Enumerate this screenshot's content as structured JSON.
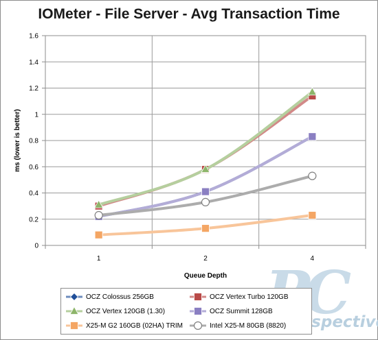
{
  "chart_data": {
    "type": "line",
    "title": "IOMeter - File Server - Avg Transaction Time",
    "xlabel": "Queue Depth",
    "ylabel": "ms (lower is better)",
    "categories": [
      "1",
      "2",
      "4"
    ],
    "ylim": [
      0,
      1.6
    ],
    "yticks": [
      "0",
      "0.2",
      "0.4",
      "0.6",
      "0.8",
      "1",
      "1.2",
      "1.4",
      "1.6"
    ],
    "grid": true,
    "legend_position": "bottom",
    "series": [
      {
        "name": "OCZ Colossus 256GB",
        "values": [
          0.22,
          0.41,
          0.83
        ],
        "color": "#1f4e99",
        "marker": "diamond"
      },
      {
        "name": "OCZ Vertex Turbo 120GB",
        "values": [
          0.3,
          0.58,
          1.14
        ],
        "color": "#b94a48",
        "marker": "square"
      },
      {
        "name": "OCZ Vertex 120GB (1.30)",
        "values": [
          0.31,
          0.58,
          1.17
        ],
        "color": "#8db56a",
        "marker": "triangle"
      },
      {
        "name": "OCZ Summit 128GB",
        "values": [
          0.22,
          0.41,
          0.83
        ],
        "color": "#8a7fc2",
        "marker": "square"
      },
      {
        "name": "X25-M G2 160GB (02HA) TRIM",
        "values": [
          0.08,
          0.13,
          0.23
        ],
        "color": "#f4a664",
        "marker": "square"
      },
      {
        "name": "Intel X25-M 80GB (8820)",
        "values": [
          0.23,
          0.33,
          0.53
        ],
        "color": "#7f7f7f",
        "marker": "circle"
      }
    ]
  },
  "watermark": {
    "big": "PC",
    "small": "Perspective"
  }
}
